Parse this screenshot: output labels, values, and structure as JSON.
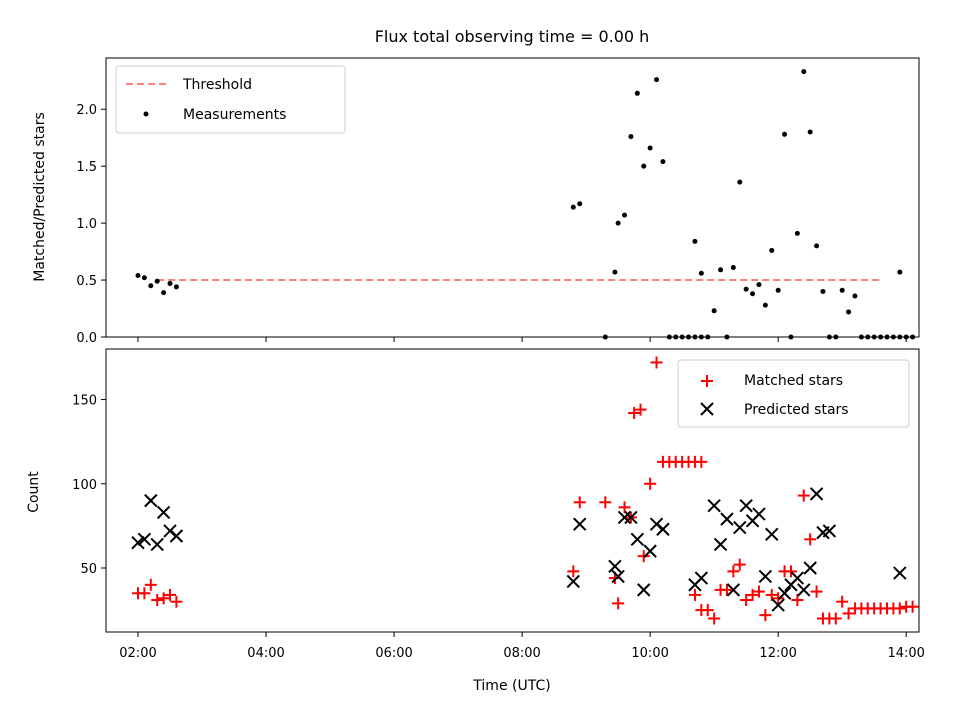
{
  "chart_data": [
    {
      "type": "scatter",
      "title": "Flux total observing time = 0.00 h",
      "ylabel": "Matched/Predicted stars",
      "xlabel": "",
      "xlim": [
        "01:30",
        "14:12"
      ],
      "ylim": [
        0,
        2.45
      ],
      "x_ticks": [
        "02:00",
        "04:00",
        "06:00",
        "08:00",
        "10:00",
        "12:00",
        "14:00"
      ],
      "y_ticks": [
        "0.0",
        "0.5",
        "1.0",
        "1.5",
        "2.0"
      ],
      "y_tick_values": [
        0,
        0.5,
        1.0,
        1.5,
        2.0
      ],
      "legend_position": "top-left",
      "legend": [
        "Threshold",
        "Measurements"
      ],
      "threshold": {
        "name": "Threshold",
        "y": 0.5,
        "x_start": "02:18",
        "x_end": "13:36",
        "color": "#ff7f7f"
      },
      "measurements": {
        "name": "Measurements",
        "color": "#000000",
        "points": [
          [
            "02:00",
            0.54
          ],
          [
            "02:06",
            0.52
          ],
          [
            "02:12",
            0.45
          ],
          [
            "02:18",
            0.49
          ],
          [
            "02:24",
            0.39
          ],
          [
            "02:30",
            0.47
          ],
          [
            "02:36",
            0.44
          ],
          [
            "08:48",
            1.14
          ],
          [
            "08:54",
            1.17
          ],
          [
            "09:18",
            0.0
          ],
          [
            "09:27",
            0.57
          ],
          [
            "09:30",
            1.0
          ],
          [
            "09:36",
            1.07
          ],
          [
            "09:42",
            1.76
          ],
          [
            "09:48",
            2.14
          ],
          [
            "09:54",
            1.5
          ],
          [
            "10:00",
            1.66
          ],
          [
            "10:06",
            2.26
          ],
          [
            "10:12",
            1.54
          ],
          [
            "10:18",
            0.0
          ],
          [
            "10:24",
            0.0
          ],
          [
            "10:30",
            0.0
          ],
          [
            "10:36",
            0.0
          ],
          [
            "10:42",
            0.0
          ],
          [
            "10:48",
            0.0
          ],
          [
            "10:42",
            0.84
          ],
          [
            "10:48",
            0.56
          ],
          [
            "10:54",
            0.0
          ],
          [
            "11:00",
            0.23
          ],
          [
            "11:06",
            0.59
          ],
          [
            "11:12",
            0.0
          ],
          [
            "11:18",
            0.61
          ],
          [
            "11:24",
            1.36
          ],
          [
            "11:30",
            0.42
          ],
          [
            "11:36",
            0.38
          ],
          [
            "11:42",
            0.46
          ],
          [
            "11:48",
            0.28
          ],
          [
            "11:54",
            0.76
          ],
          [
            "12:00",
            0.41
          ],
          [
            "12:06",
            1.78
          ],
          [
            "12:12",
            0.0
          ],
          [
            "12:18",
            0.91
          ],
          [
            "12:24",
            2.33
          ],
          [
            "12:30",
            1.8
          ],
          [
            "12:36",
            0.8
          ],
          [
            "12:42",
            0.4
          ],
          [
            "12:48",
            0.0
          ],
          [
            "12:54",
            0.0
          ],
          [
            "13:00",
            0.41
          ],
          [
            "13:06",
            0.22
          ],
          [
            "13:12",
            0.36
          ],
          [
            "13:18",
            0.0
          ],
          [
            "13:24",
            0.0
          ],
          [
            "13:30",
            0.0
          ],
          [
            "13:36",
            0.0
          ],
          [
            "13:42",
            0.0
          ],
          [
            "13:48",
            0.0
          ],
          [
            "13:54",
            0.0
          ],
          [
            "14:00",
            0.0
          ],
          [
            "13:54",
            0.57
          ],
          [
            "14:06",
            0.0
          ]
        ]
      }
    },
    {
      "type": "scatter",
      "title": "",
      "xlabel": "Time (UTC)",
      "ylabel": "Count",
      "xlim": [
        "01:30",
        "14:12"
      ],
      "ylim": [
        12,
        180
      ],
      "x_ticks": [
        "02:00",
        "04:00",
        "06:00",
        "08:00",
        "10:00",
        "12:00",
        "14:00"
      ],
      "y_ticks": [
        "50",
        "100",
        "150"
      ],
      "y_tick_values": [
        50,
        100,
        150
      ],
      "legend_position": "top-right",
      "legend": [
        "Matched stars",
        "Predicted stars"
      ],
      "matched": {
        "name": "Matched stars",
        "color": "#ff0000",
        "points": [
          [
            "02:00",
            35
          ],
          [
            "02:06",
            35
          ],
          [
            "02:12",
            40
          ],
          [
            "02:18",
            31
          ],
          [
            "02:24",
            32
          ],
          [
            "02:30",
            34
          ],
          [
            "02:36",
            30
          ],
          [
            "08:48",
            48
          ],
          [
            "08:54",
            89
          ],
          [
            "09:18",
            89
          ],
          [
            "09:27",
            44
          ],
          [
            "09:30",
            29
          ],
          [
            "09:36",
            86
          ],
          [
            "09:42",
            80
          ],
          [
            "09:45",
            142
          ],
          [
            "09:51",
            144
          ],
          [
            "09:54",
            57
          ],
          [
            "10:00",
            100
          ],
          [
            "10:06",
            172
          ],
          [
            "10:12",
            113
          ],
          [
            "10:18",
            113
          ],
          [
            "10:24",
            113
          ],
          [
            "10:30",
            113
          ],
          [
            "10:36",
            113
          ],
          [
            "10:42",
            113
          ],
          [
            "10:48",
            113
          ],
          [
            "10:42",
            34
          ],
          [
            "10:48",
            25
          ],
          [
            "10:54",
            25
          ],
          [
            "11:00",
            20
          ],
          [
            "11:06",
            37
          ],
          [
            "11:12",
            37
          ],
          [
            "11:18",
            48
          ],
          [
            "11:24",
            52
          ],
          [
            "11:30",
            31
          ],
          [
            "11:36",
            34
          ],
          [
            "11:42",
            36
          ],
          [
            "11:48",
            22
          ],
          [
            "11:54",
            34
          ],
          [
            "12:00",
            32
          ],
          [
            "12:06",
            48
          ],
          [
            "12:12",
            48
          ],
          [
            "12:18",
            31
          ],
          [
            "12:24",
            93
          ],
          [
            "12:30",
            67
          ],
          [
            "12:36",
            36
          ],
          [
            "12:42",
            20
          ],
          [
            "12:48",
            20
          ],
          [
            "12:54",
            20
          ],
          [
            "13:00",
            30
          ],
          [
            "13:06",
            23
          ],
          [
            "13:12",
            26
          ],
          [
            "13:18",
            26
          ],
          [
            "13:24",
            26
          ],
          [
            "13:30",
            26
          ],
          [
            "13:36",
            26
          ],
          [
            "13:42",
            26
          ],
          [
            "13:48",
            26
          ],
          [
            "13:54",
            26
          ],
          [
            "14:00",
            27
          ],
          [
            "14:06",
            27
          ]
        ]
      },
      "predicted": {
        "name": "Predicted stars",
        "color": "#000000",
        "points": [
          [
            "02:00",
            65
          ],
          [
            "02:06",
            67
          ],
          [
            "02:12",
            90
          ],
          [
            "02:18",
            64
          ],
          [
            "02:24",
            83
          ],
          [
            "02:30",
            72
          ],
          [
            "02:36",
            69
          ],
          [
            "08:48",
            42
          ],
          [
            "08:54",
            76
          ],
          [
            "09:27",
            51
          ],
          [
            "09:30",
            45
          ],
          [
            "09:36",
            80
          ],
          [
            "09:42",
            80
          ],
          [
            "09:48",
            67
          ],
          [
            "09:54",
            37
          ],
          [
            "10:00",
            60
          ],
          [
            "10:06",
            76
          ],
          [
            "10:12",
            73
          ],
          [
            "10:42",
            40
          ],
          [
            "10:48",
            44
          ],
          [
            "11:00",
            87
          ],
          [
            "11:06",
            64
          ],
          [
            "11:12",
            79
          ],
          [
            "11:18",
            37
          ],
          [
            "11:24",
            74
          ],
          [
            "11:30",
            87
          ],
          [
            "11:36",
            78
          ],
          [
            "11:42",
            82
          ],
          [
            "11:48",
            45
          ],
          [
            "11:54",
            70
          ],
          [
            "12:00",
            28
          ],
          [
            "12:06",
            35
          ],
          [
            "12:12",
            40
          ],
          [
            "12:18",
            44
          ],
          [
            "12:24",
            37
          ],
          [
            "12:30",
            50
          ],
          [
            "12:36",
            94
          ],
          [
            "12:42",
            71
          ],
          [
            "12:48",
            72
          ],
          [
            "13:54",
            47
          ]
        ]
      }
    }
  ]
}
